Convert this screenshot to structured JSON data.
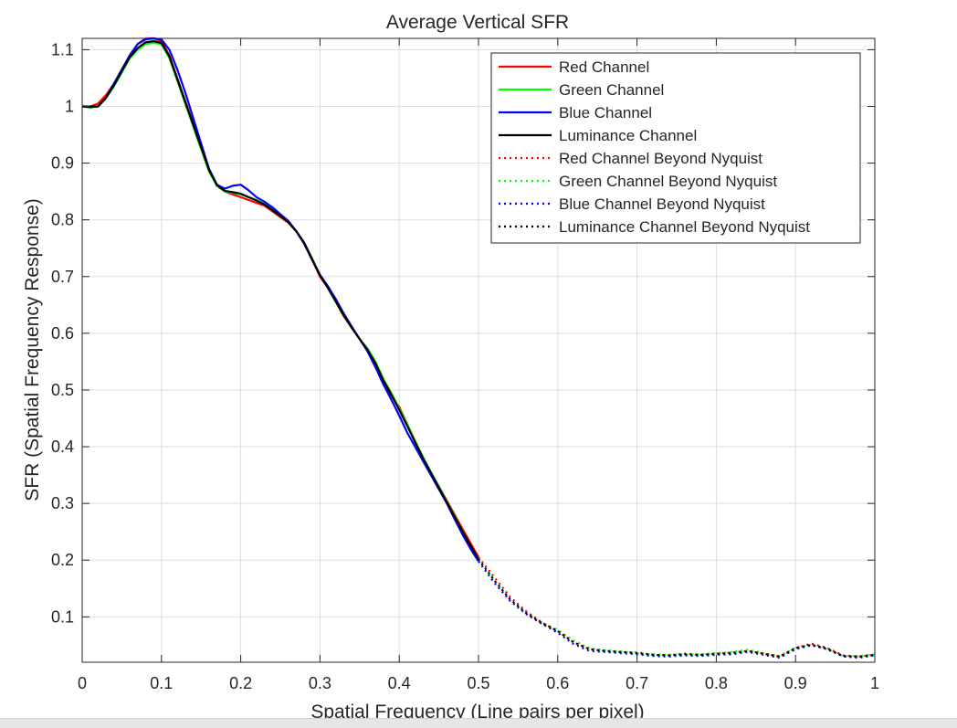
{
  "chart_data": {
    "type": "line",
    "title": "Average Vertical SFR",
    "xlabel": "Spatial Frequency (Line pairs per pixel)",
    "ylabel": "SFR (Spatial Frequency Response)",
    "xlim": [
      0,
      1
    ],
    "ylim": [
      0.02,
      1.12
    ],
    "x_ticks": [
      "0",
      "0.1",
      "0.2",
      "0.3",
      "0.4",
      "0.5",
      "0.6",
      "0.7",
      "0.8",
      "0.9",
      "1"
    ],
    "y_ticks": [
      "0.1",
      "0.2",
      "0.3",
      "0.4",
      "0.5",
      "0.6",
      "0.7",
      "0.8",
      "0.9",
      "1",
      "1.1"
    ],
    "grid": true,
    "legend_position": "top-right",
    "series": [
      {
        "name": "Red Channel",
        "color": "#ff0000",
        "style": "solid",
        "x": [
          0,
          0.01,
          0.02,
          0.03,
          0.04,
          0.05,
          0.06,
          0.07,
          0.08,
          0.09,
          0.1,
          0.11,
          0.12,
          0.13,
          0.14,
          0.15,
          0.16,
          0.17,
          0.18,
          0.19,
          0.2,
          0.21,
          0.22,
          0.23,
          0.24,
          0.25,
          0.26,
          0.27,
          0.28,
          0.29,
          0.3,
          0.31,
          0.32,
          0.33,
          0.34,
          0.35,
          0.36,
          0.37,
          0.38,
          0.39,
          0.4,
          0.41,
          0.42,
          0.43,
          0.44,
          0.45,
          0.46,
          0.47,
          0.48,
          0.49,
          0.5
        ],
        "y": [
          1.0,
          1.0,
          1.005,
          1.02,
          1.04,
          1.065,
          1.09,
          1.11,
          1.12,
          1.12,
          1.115,
          1.09,
          1.05,
          1.01,
          0.97,
          0.93,
          0.89,
          0.86,
          0.85,
          0.845,
          0.84,
          0.835,
          0.83,
          0.825,
          0.815,
          0.805,
          0.795,
          0.78,
          0.76,
          0.73,
          0.7,
          0.68,
          0.655,
          0.63,
          0.61,
          0.59,
          0.57,
          0.545,
          0.515,
          0.49,
          0.47,
          0.44,
          0.41,
          0.38,
          0.355,
          0.33,
          0.305,
          0.28,
          0.255,
          0.23,
          0.205
        ]
      },
      {
        "name": "Green Channel",
        "color": "#00ff00",
        "style": "solid",
        "x": [
          0,
          0.01,
          0.02,
          0.03,
          0.04,
          0.05,
          0.06,
          0.07,
          0.08,
          0.09,
          0.1,
          0.11,
          0.12,
          0.13,
          0.14,
          0.15,
          0.16,
          0.17,
          0.18,
          0.19,
          0.2,
          0.21,
          0.22,
          0.23,
          0.24,
          0.25,
          0.26,
          0.27,
          0.28,
          0.29,
          0.3,
          0.31,
          0.32,
          0.33,
          0.34,
          0.35,
          0.36,
          0.37,
          0.38,
          0.39,
          0.4,
          0.41,
          0.42,
          0.43,
          0.44,
          0.45,
          0.46,
          0.47,
          0.48,
          0.49,
          0.5
        ],
        "y": [
          1.0,
          0.998,
          1.0,
          1.015,
          1.035,
          1.06,
          1.085,
          1.1,
          1.11,
          1.112,
          1.11,
          1.085,
          1.045,
          1.005,
          0.965,
          0.925,
          0.885,
          0.86,
          0.85,
          0.848,
          0.845,
          0.84,
          0.835,
          0.828,
          0.818,
          0.808,
          0.796,
          0.78,
          0.76,
          0.732,
          0.703,
          0.68,
          0.655,
          0.632,
          0.61,
          0.59,
          0.573,
          0.55,
          0.52,
          0.495,
          0.467,
          0.44,
          0.41,
          0.382,
          0.355,
          0.33,
          0.303,
          0.277,
          0.25,
          0.225,
          0.2
        ]
      },
      {
        "name": "Blue Channel",
        "color": "#0000ff",
        "style": "solid",
        "x": [
          0,
          0.01,
          0.02,
          0.03,
          0.04,
          0.05,
          0.06,
          0.07,
          0.08,
          0.09,
          0.1,
          0.11,
          0.12,
          0.13,
          0.14,
          0.15,
          0.16,
          0.17,
          0.18,
          0.19,
          0.2,
          0.21,
          0.22,
          0.23,
          0.24,
          0.25,
          0.26,
          0.27,
          0.28,
          0.29,
          0.3,
          0.31,
          0.32,
          0.33,
          0.34,
          0.35,
          0.36,
          0.37,
          0.38,
          0.39,
          0.4,
          0.41,
          0.42,
          0.43,
          0.44,
          0.45,
          0.46,
          0.47,
          0.48,
          0.49,
          0.5
        ],
        "y": [
          1.0,
          0.999,
          1.0,
          1.015,
          1.04,
          1.065,
          1.09,
          1.11,
          1.118,
          1.12,
          1.118,
          1.1,
          1.065,
          1.025,
          0.98,
          0.935,
          0.89,
          0.862,
          0.855,
          0.86,
          0.862,
          0.852,
          0.84,
          0.832,
          0.822,
          0.81,
          0.798,
          0.78,
          0.758,
          0.73,
          0.703,
          0.683,
          0.66,
          0.635,
          0.612,
          0.59,
          0.568,
          0.54,
          0.51,
          0.483,
          0.455,
          0.425,
          0.4,
          0.375,
          0.35,
          0.325,
          0.3,
          0.272,
          0.245,
          0.22,
          0.198
        ]
      },
      {
        "name": "Luminance Channel",
        "color": "#000000",
        "style": "solid",
        "x": [
          0,
          0.01,
          0.02,
          0.03,
          0.04,
          0.05,
          0.06,
          0.07,
          0.08,
          0.09,
          0.1,
          0.11,
          0.12,
          0.13,
          0.14,
          0.15,
          0.16,
          0.17,
          0.18,
          0.19,
          0.2,
          0.21,
          0.22,
          0.23,
          0.24,
          0.25,
          0.26,
          0.27,
          0.28,
          0.29,
          0.3,
          0.31,
          0.32,
          0.33,
          0.34,
          0.35,
          0.36,
          0.37,
          0.38,
          0.39,
          0.4,
          0.41,
          0.42,
          0.43,
          0.44,
          0.45,
          0.46,
          0.47,
          0.48,
          0.49,
          0.5
        ],
        "y": [
          1.0,
          0.999,
          1.0,
          1.015,
          1.037,
          1.062,
          1.087,
          1.103,
          1.113,
          1.115,
          1.112,
          1.088,
          1.048,
          1.008,
          0.968,
          0.928,
          0.888,
          0.861,
          0.851,
          0.849,
          0.846,
          0.84,
          0.834,
          0.827,
          0.817,
          0.807,
          0.796,
          0.78,
          0.76,
          0.731,
          0.702,
          0.68,
          0.656,
          0.632,
          0.61,
          0.59,
          0.571,
          0.547,
          0.517,
          0.492,
          0.465,
          0.437,
          0.408,
          0.38,
          0.354,
          0.328,
          0.302,
          0.276,
          0.25,
          0.226,
          0.202
        ]
      },
      {
        "name": "Red Channel Beyond Nyquist",
        "color": "#ff0000",
        "style": "dotted",
        "x": [
          0.5,
          0.52,
          0.54,
          0.56,
          0.58,
          0.6,
          0.62,
          0.64,
          0.66,
          0.68,
          0.7,
          0.72,
          0.74,
          0.76,
          0.78,
          0.8,
          0.82,
          0.84,
          0.86,
          0.88,
          0.9,
          0.92,
          0.94,
          0.96,
          0.98,
          1.0
        ],
        "y": [
          0.205,
          0.17,
          0.135,
          0.11,
          0.09,
          0.075,
          0.055,
          0.043,
          0.04,
          0.038,
          0.037,
          0.033,
          0.032,
          0.035,
          0.033,
          0.035,
          0.037,
          0.04,
          0.035,
          0.03,
          0.045,
          0.053,
          0.045,
          0.032,
          0.03,
          0.033
        ]
      },
      {
        "name": "Green Channel Beyond Nyquist",
        "color": "#00ff00",
        "style": "dotted",
        "x": [
          0.5,
          0.52,
          0.54,
          0.56,
          0.58,
          0.6,
          0.62,
          0.64,
          0.66,
          0.68,
          0.7,
          0.72,
          0.74,
          0.76,
          0.78,
          0.8,
          0.82,
          0.84,
          0.86,
          0.88,
          0.9,
          0.92,
          0.94,
          0.96,
          0.98,
          1.0
        ],
        "y": [
          0.2,
          0.165,
          0.13,
          0.107,
          0.09,
          0.077,
          0.058,
          0.045,
          0.041,
          0.039,
          0.036,
          0.034,
          0.033,
          0.034,
          0.034,
          0.036,
          0.038,
          0.042,
          0.036,
          0.031,
          0.046,
          0.051,
          0.043,
          0.031,
          0.031,
          0.034
        ]
      },
      {
        "name": "Blue Channel Beyond Nyquist",
        "color": "#0000ff",
        "style": "dotted",
        "x": [
          0.5,
          0.52,
          0.54,
          0.56,
          0.58,
          0.6,
          0.62,
          0.64,
          0.66,
          0.68,
          0.7,
          0.72,
          0.74,
          0.76,
          0.78,
          0.8,
          0.82,
          0.84,
          0.86,
          0.88,
          0.9,
          0.92,
          0.94,
          0.96,
          0.98,
          1.0
        ],
        "y": [
          0.198,
          0.16,
          0.128,
          0.105,
          0.088,
          0.072,
          0.052,
          0.04,
          0.038,
          0.036,
          0.034,
          0.031,
          0.03,
          0.032,
          0.031,
          0.033,
          0.034,
          0.038,
          0.033,
          0.028,
          0.043,
          0.05,
          0.043,
          0.03,
          0.028,
          0.032
        ]
      },
      {
        "name": "Luminance Channel Beyond Nyquist",
        "color": "#000000",
        "style": "dotted",
        "x": [
          0.5,
          0.52,
          0.54,
          0.56,
          0.58,
          0.6,
          0.62,
          0.64,
          0.66,
          0.68,
          0.7,
          0.72,
          0.74,
          0.76,
          0.78,
          0.8,
          0.82,
          0.84,
          0.86,
          0.88,
          0.9,
          0.92,
          0.94,
          0.96,
          0.98,
          1.0
        ],
        "y": [
          0.202,
          0.164,
          0.131,
          0.107,
          0.089,
          0.075,
          0.055,
          0.043,
          0.04,
          0.038,
          0.036,
          0.033,
          0.032,
          0.034,
          0.033,
          0.035,
          0.036,
          0.04,
          0.035,
          0.03,
          0.045,
          0.051,
          0.044,
          0.031,
          0.03,
          0.033
        ]
      }
    ]
  }
}
